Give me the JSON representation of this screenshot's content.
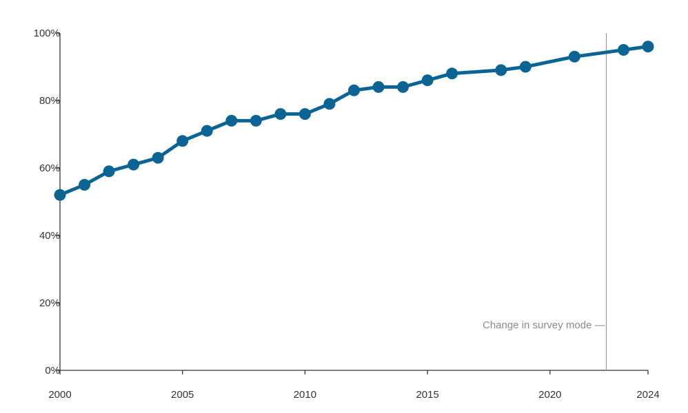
{
  "chart_data": {
    "type": "line",
    "title": "",
    "xlabel": "",
    "ylabel": "",
    "x": [
      2000,
      2001,
      2002,
      2003,
      2004,
      2005,
      2006,
      2007,
      2008,
      2009,
      2010,
      2011,
      2012,
      2013,
      2014,
      2015,
      2016,
      2018,
      2019,
      2021,
      2023,
      2024
    ],
    "series": [
      {
        "name": "",
        "values": [
          52,
          55,
          59,
          61,
          63,
          68,
          71,
          74,
          74,
          76,
          76,
          79,
          83,
          84,
          84,
          86,
          88,
          89,
          90,
          93,
          95,
          96
        ]
      }
    ],
    "xlim": [
      2000,
      2024
    ],
    "ylim": [
      0,
      100
    ],
    "x_ticks": [
      2000,
      2005,
      2010,
      2015,
      2020,
      2024
    ],
    "x_tick_labels": [
      "2000",
      "2005",
      "2010",
      "2015",
      "2020",
      "2024"
    ],
    "y_ticks": [
      0,
      20,
      40,
      60,
      80,
      100
    ],
    "y_tick_labels": [
      "0%",
      "20%",
      "40%",
      "60%",
      "80%",
      "100%"
    ],
    "grid": false,
    "line_color": "#0b6494",
    "annotation": {
      "text": "Change in survey mode —",
      "x": 2022.3,
      "line_color": "#8a8a8a"
    }
  }
}
